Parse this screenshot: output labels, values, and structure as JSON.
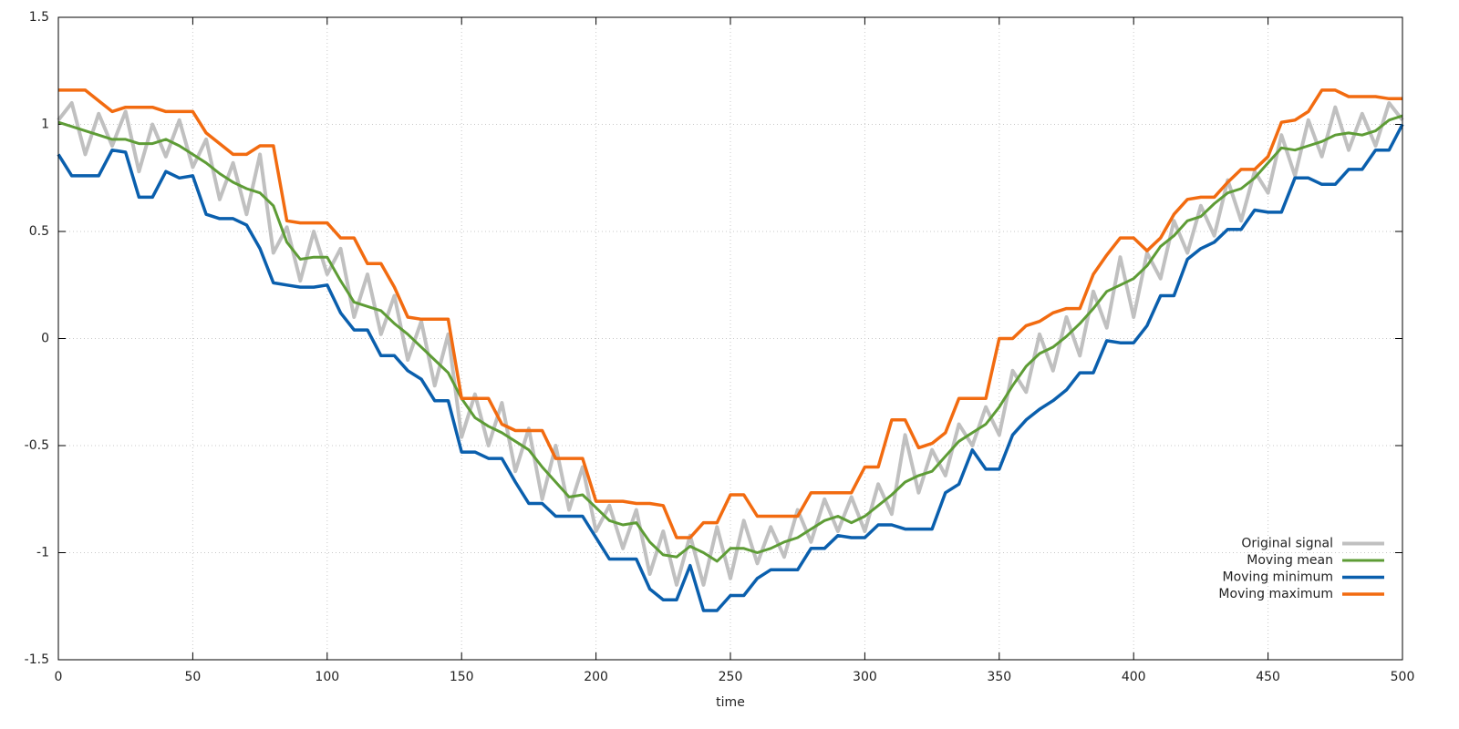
{
  "chart_data": {
    "type": "line",
    "xlabel": "time",
    "xlim": [
      0,
      500
    ],
    "ylim": [
      -1.5,
      1.5
    ],
    "xticks": [
      0,
      50,
      100,
      150,
      200,
      250,
      300,
      350,
      400,
      450,
      500
    ],
    "yticks": [
      -1.5,
      -1,
      -0.5,
      0,
      0.5,
      1,
      1.5
    ],
    "grid": true,
    "legend": "bottom-right",
    "x": [
      0,
      5,
      10,
      15,
      20,
      25,
      30,
      35,
      40,
      45,
      50,
      55,
      60,
      65,
      70,
      75,
      80,
      85,
      90,
      95,
      100,
      105,
      110,
      115,
      120,
      125,
      130,
      135,
      140,
      145,
      150,
      155,
      160,
      165,
      170,
      175,
      180,
      185,
      190,
      195,
      200,
      205,
      210,
      215,
      220,
      225,
      230,
      235,
      240,
      245,
      250,
      255,
      260,
      265,
      270,
      275,
      280,
      285,
      290,
      295,
      300,
      305,
      310,
      315,
      320,
      325,
      330,
      335,
      340,
      345,
      350,
      355,
      360,
      365,
      370,
      375,
      380,
      385,
      390,
      395,
      400,
      405,
      410,
      415,
      420,
      425,
      430,
      435,
      440,
      445,
      450,
      455,
      460,
      465,
      470,
      475,
      480,
      485,
      490,
      495,
      500
    ],
    "series": [
      {
        "name": "Original signal",
        "color": "#c0c0c0",
        "width": 4,
        "values": [
          1.02,
          1.1,
          0.86,
          1.05,
          0.9,
          1.06,
          0.78,
          1.0,
          0.85,
          1.02,
          0.8,
          0.93,
          0.65,
          0.82,
          0.58,
          0.86,
          0.4,
          0.52,
          0.27,
          0.5,
          0.3,
          0.42,
          0.1,
          0.3,
          0.02,
          0.2,
          -0.1,
          0.08,
          -0.22,
          0.02,
          -0.46,
          -0.26,
          -0.5,
          -0.3,
          -0.62,
          -0.42,
          -0.75,
          -0.5,
          -0.8,
          -0.6,
          -0.9,
          -0.78,
          -0.98,
          -0.8,
          -1.1,
          -0.9,
          -1.15,
          -0.92,
          -1.15,
          -0.88,
          -1.12,
          -0.85,
          -1.05,
          -0.88,
          -1.02,
          -0.8,
          -0.95,
          -0.75,
          -0.9,
          -0.74,
          -0.9,
          -0.68,
          -0.82,
          -0.45,
          -0.72,
          -0.52,
          -0.64,
          -0.4,
          -0.5,
          -0.32,
          -0.45,
          -0.15,
          -0.25,
          0.02,
          -0.15,
          0.1,
          -0.08,
          0.22,
          0.05,
          0.38,
          0.1,
          0.4,
          0.28,
          0.55,
          0.4,
          0.62,
          0.48,
          0.74,
          0.55,
          0.78,
          0.68,
          0.95,
          0.76,
          1.02,
          0.85,
          1.08,
          0.88,
          1.05,
          0.9,
          1.1,
          1.02
        ]
      },
      {
        "name": "Moving mean",
        "color": "#5e9c36",
        "width": 3,
        "values": [
          1.01,
          0.99,
          0.97,
          0.95,
          0.93,
          0.93,
          0.91,
          0.91,
          0.93,
          0.9,
          0.86,
          0.82,
          0.77,
          0.73,
          0.7,
          0.68,
          0.62,
          0.45,
          0.37,
          0.38,
          0.38,
          0.27,
          0.17,
          0.15,
          0.13,
          0.07,
          0.02,
          -0.04,
          -0.1,
          -0.16,
          -0.28,
          -0.37,
          -0.41,
          -0.44,
          -0.48,
          -0.52,
          -0.6,
          -0.67,
          -0.74,
          -0.73,
          -0.79,
          -0.85,
          -0.87,
          -0.86,
          -0.95,
          -1.01,
          -1.02,
          -0.97,
          -1.0,
          -1.04,
          -0.98,
          -0.98,
          -1.0,
          -0.98,
          -0.95,
          -0.93,
          -0.89,
          -0.85,
          -0.83,
          -0.86,
          -0.83,
          -0.78,
          -0.73,
          -0.67,
          -0.64,
          -0.62,
          -0.55,
          -0.48,
          -0.44,
          -0.4,
          -0.32,
          -0.22,
          -0.13,
          -0.07,
          -0.04,
          0.01,
          0.07,
          0.14,
          0.22,
          0.25,
          0.28,
          0.34,
          0.43,
          0.48,
          0.55,
          0.57,
          0.63,
          0.68,
          0.7,
          0.75,
          0.82,
          0.89,
          0.88,
          0.9,
          0.92,
          0.95,
          0.96,
          0.95,
          0.97,
          1.02,
          1.04
        ]
      },
      {
        "name": "Moving minimum",
        "color": "#0a5fad",
        "width": 3.5,
        "values": [
          0.86,
          0.76,
          0.76,
          0.76,
          0.88,
          0.87,
          0.66,
          0.66,
          0.78,
          0.75,
          0.76,
          0.58,
          0.56,
          0.56,
          0.53,
          0.42,
          0.26,
          0.25,
          0.24,
          0.24,
          0.25,
          0.12,
          0.04,
          0.04,
          -0.08,
          -0.08,
          -0.15,
          -0.19,
          -0.29,
          -0.29,
          -0.53,
          -0.53,
          -0.56,
          -0.56,
          -0.67,
          -0.77,
          -0.77,
          -0.83,
          -0.83,
          -0.83,
          -0.93,
          -1.03,
          -1.03,
          -1.03,
          -1.17,
          -1.22,
          -1.22,
          -1.06,
          -1.27,
          -1.27,
          -1.2,
          -1.2,
          -1.12,
          -1.08,
          -1.08,
          -1.08,
          -0.98,
          -0.98,
          -0.92,
          -0.93,
          -0.93,
          -0.87,
          -0.87,
          -0.89,
          -0.89,
          -0.89,
          -0.72,
          -0.68,
          -0.52,
          -0.61,
          -0.61,
          -0.45,
          -0.38,
          -0.33,
          -0.29,
          -0.24,
          -0.16,
          -0.16,
          -0.01,
          -0.02,
          -0.02,
          0.06,
          0.2,
          0.2,
          0.37,
          0.42,
          0.45,
          0.51,
          0.51,
          0.6,
          0.59,
          0.59,
          0.75,
          0.75,
          0.72,
          0.72,
          0.79,
          0.79,
          0.88,
          0.88,
          1.0
        ]
      },
      {
        "name": "Moving maximum",
        "color": "#f26b10",
        "width": 3.5,
        "values": [
          1.16,
          1.16,
          1.16,
          1.11,
          1.06,
          1.08,
          1.08,
          1.08,
          1.06,
          1.06,
          1.06,
          0.96,
          0.91,
          0.86,
          0.86,
          0.9,
          0.9,
          0.55,
          0.54,
          0.54,
          0.54,
          0.47,
          0.47,
          0.35,
          0.35,
          0.24,
          0.1,
          0.09,
          0.09,
          0.09,
          -0.28,
          -0.28,
          -0.28,
          -0.4,
          -0.43,
          -0.43,
          -0.43,
          -0.56,
          -0.56,
          -0.56,
          -0.76,
          -0.76,
          -0.76,
          -0.77,
          -0.77,
          -0.78,
          -0.93,
          -0.93,
          -0.86,
          -0.86,
          -0.73,
          -0.73,
          -0.83,
          -0.83,
          -0.83,
          -0.83,
          -0.72,
          -0.72,
          -0.72,
          -0.72,
          -0.6,
          -0.6,
          -0.38,
          -0.38,
          -0.51,
          -0.49,
          -0.44,
          -0.28,
          -0.28,
          -0.28,
          0.0,
          0.0,
          0.06,
          0.08,
          0.12,
          0.14,
          0.14,
          0.3,
          0.39,
          0.47,
          0.47,
          0.41,
          0.47,
          0.58,
          0.65,
          0.66,
          0.66,
          0.73,
          0.79,
          0.79,
          0.85,
          1.01,
          1.02,
          1.06,
          1.16,
          1.16,
          1.13,
          1.13,
          1.13,
          1.12,
          1.12
        ]
      }
    ]
  }
}
